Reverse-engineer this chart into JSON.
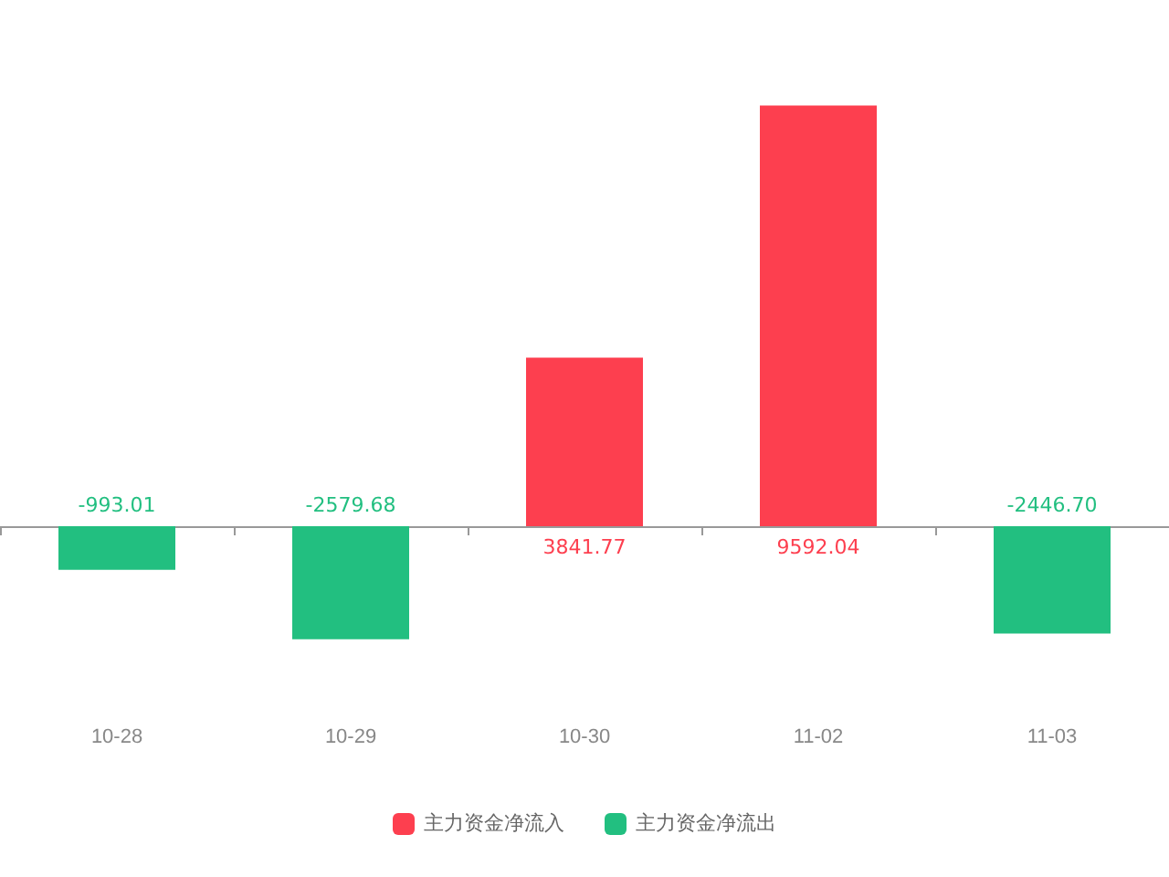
{
  "chart_data": {
    "type": "bar",
    "categories": [
      "10-28",
      "10-29",
      "10-30",
      "11-02",
      "11-03"
    ],
    "series": [
      {
        "name": "主力资金净流入",
        "color": "#fd3f4f",
        "values": [
          null,
          null,
          3841.77,
          9592.04,
          null
        ],
        "value_labels": [
          null,
          null,
          "3841.77",
          "9592.04",
          null
        ]
      },
      {
        "name": "主力资金净流出",
        "color": "#22bf80",
        "values": [
          -993.01,
          -2579.68,
          null,
          null,
          -2446.7
        ],
        "value_labels": [
          "-993.01",
          "-2579.68",
          null,
          null,
          "-2446.70"
        ]
      }
    ],
    "stacked": true,
    "legend": "bottom",
    "grid": false
  }
}
